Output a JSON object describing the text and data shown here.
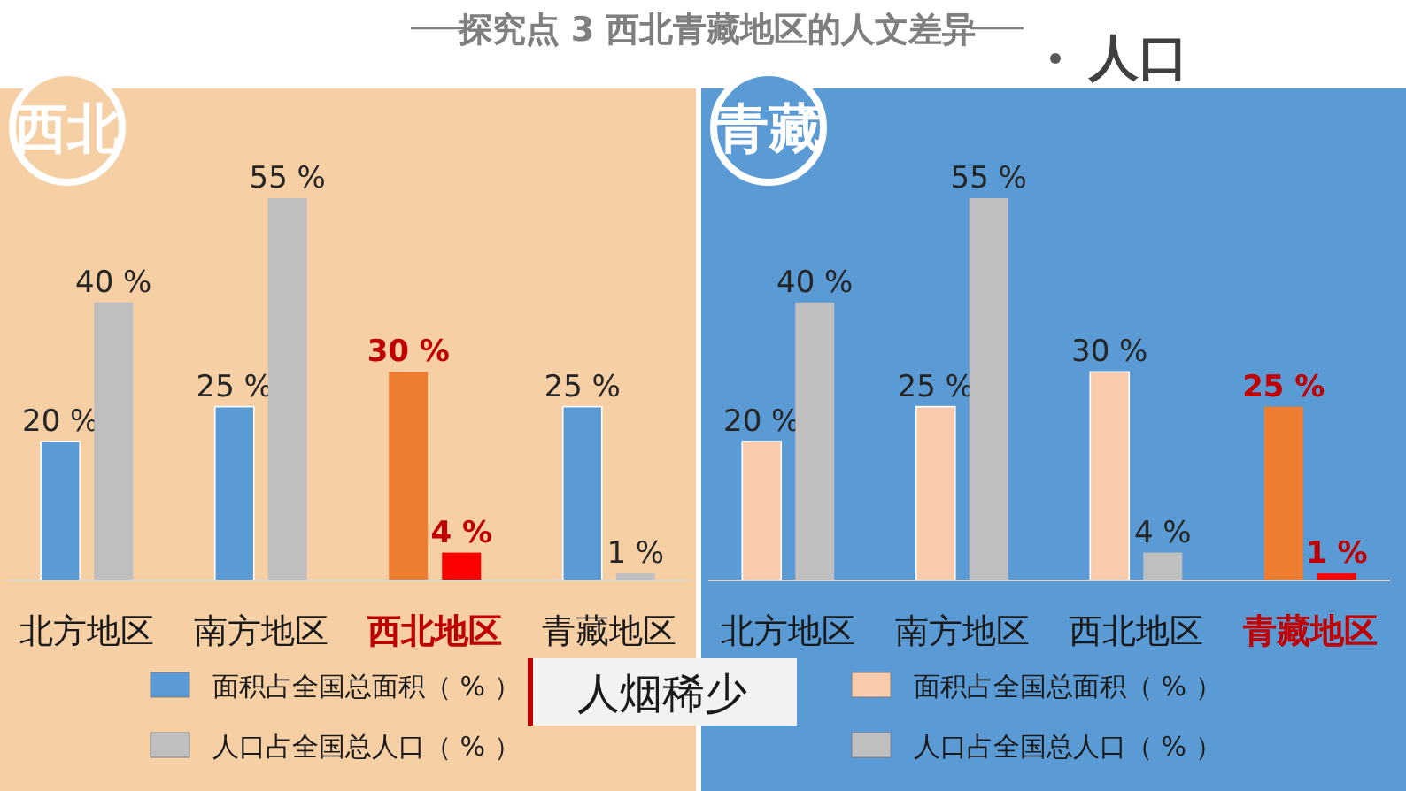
{
  "chart_data": [
    {
      "type": "bar",
      "title": "西北",
      "annotations": [
        "探究点 3 西北青藏地区的人文差异",
        "人口",
        "人烟稀少"
      ],
      "categories": [
        "北方地区",
        "南方地区",
        "西北地区",
        "青藏地区"
      ],
      "legend": "bottom",
      "series": [
        {
          "name": "面积占全国总面积（ % ）",
          "colors": [
            "#5b9bd5",
            "#5b9bd5",
            "#ed7d31",
            "#5b9bd5"
          ],
          "values": [
            20,
            25,
            30,
            25
          ],
          "value_labels": [
            "20 %",
            "25 %",
            "30 %",
            "25 %"
          ]
        },
        {
          "name": "人口占全国总人口（ % ）",
          "colors": [
            "#bfbfbf",
            "#bfbfbf",
            "#ff0000",
            "#bfbfbf"
          ],
          "values": [
            40,
            55,
            4,
            1
          ],
          "value_labels": [
            "40 %",
            "55 %",
            "4 %",
            "1 %"
          ]
        }
      ]
    },
    {
      "type": "bar",
      "title": "青藏",
      "categories": [
        "北方地区",
        "南方地区",
        "西北地区",
        "青藏地区"
      ],
      "legend": "bottom",
      "series": [
        {
          "name": "面积占全国总面积（ % ）",
          "colors": [
            "#f8cbad",
            "#f8cbad",
            "#f8cbad",
            "#ed7d31"
          ],
          "values": [
            20,
            25,
            30,
            25
          ],
          "value_labels": [
            "20 %",
            "25 %",
            "30 %",
            "25 %"
          ]
        },
        {
          "name": "人口占全国总人口（ % ）",
          "colors": [
            "#bfbfbf",
            "#bfbfbf",
            "#bfbfbf",
            "#ff0000"
          ],
          "values": [
            40,
            55,
            4,
            1
          ],
          "value_labels": [
            "40 %",
            "55 %",
            "4 %",
            "1 %"
          ]
        }
      ]
    }
  ]
}
